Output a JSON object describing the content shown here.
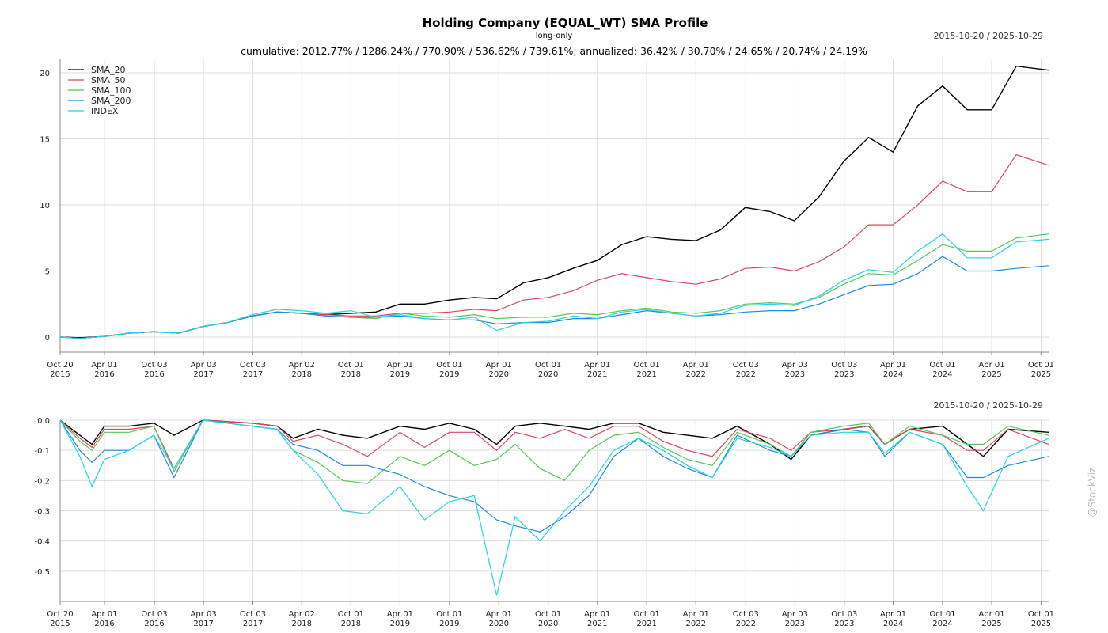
{
  "header": {
    "title": "Holding Company (EQUAL_WT) SMA Profile",
    "subtitle": "long-only",
    "date_range_top": "2015-10-20 / 2025-10-29",
    "stats": "cumulative: 2012.77% / 1286.24% / 770.90% / 536.62% / 739.61%; annualized: 36.42% / 30.70% / 24.65% / 20.74% / 24.19%",
    "date_range_bottom": "2015-10-20 / 2025-10-29",
    "watermark": "@StockViz"
  },
  "chart_data": [
    {
      "type": "line",
      "name": "cumulative-returns",
      "ylim": [
        -0.5,
        21
      ],
      "yticks": [
        0,
        5,
        10,
        15,
        20
      ],
      "grid": true,
      "legend_placement": "top-left",
      "x_ticks": [
        {
          "date": "2015-10-20",
          "l1": "Oct 20",
          "l2": "2015"
        },
        {
          "date": "2016-04-01",
          "l1": "Apr 01",
          "l2": "2016"
        },
        {
          "date": "2016-10-03",
          "l1": "Oct 03",
          "l2": "2016"
        },
        {
          "date": "2017-04-03",
          "l1": "Apr 03",
          "l2": "2017"
        },
        {
          "date": "2017-10-03",
          "l1": "Oct 03",
          "l2": "2017"
        },
        {
          "date": "2018-04-02",
          "l1": "Apr 02",
          "l2": "2018"
        },
        {
          "date": "2018-10-01",
          "l1": "Oct 01",
          "l2": "2018"
        },
        {
          "date": "2019-04-01",
          "l1": "Apr 01",
          "l2": "2019"
        },
        {
          "date": "2019-10-01",
          "l1": "Oct 01",
          "l2": "2019"
        },
        {
          "date": "2020-04-01",
          "l1": "Apr 01",
          "l2": "2020"
        },
        {
          "date": "2020-10-01",
          "l1": "Oct 01",
          "l2": "2020"
        },
        {
          "date": "2021-04-01",
          "l1": "Apr 01",
          "l2": "2021"
        },
        {
          "date": "2021-10-01",
          "l1": "Oct 01",
          "l2": "2021"
        },
        {
          "date": "2022-04-01",
          "l1": "Apr 01",
          "l2": "2022"
        },
        {
          "date": "2022-10-03",
          "l1": "Oct 03",
          "l2": "2022"
        },
        {
          "date": "2023-04-03",
          "l1": "Apr 03",
          "l2": "2023"
        },
        {
          "date": "2023-10-03",
          "l1": "Oct 03",
          "l2": "2023"
        },
        {
          "date": "2024-04-01",
          "l1": "Apr 01",
          "l2": "2024"
        },
        {
          "date": "2024-10-01",
          "l1": "Oct 01",
          "l2": "2024"
        },
        {
          "date": "2025-04-01",
          "l1": "Apr 01",
          "l2": "2025"
        },
        {
          "date": "2025-10-01",
          "l1": "Oct 01",
          "l2": "2025"
        }
      ],
      "x": [
        "2015-10-20",
        "2016-01-01",
        "2016-04-01",
        "2016-07-01",
        "2016-10-01",
        "2017-01-01",
        "2017-04-01",
        "2017-07-01",
        "2017-10-01",
        "2018-01-01",
        "2018-04-01",
        "2018-07-01",
        "2018-10-01",
        "2019-01-01",
        "2019-04-01",
        "2019-07-01",
        "2019-10-01",
        "2020-01-01",
        "2020-03-24",
        "2020-07-01",
        "2020-10-01",
        "2021-01-01",
        "2021-04-01",
        "2021-07-01",
        "2021-10-01",
        "2022-01-01",
        "2022-04-01",
        "2022-07-01",
        "2022-10-01",
        "2023-01-01",
        "2023-04-01",
        "2023-07-01",
        "2023-10-01",
        "2024-01-01",
        "2024-04-01",
        "2024-07-01",
        "2024-10-01",
        "2025-01-01",
        "2025-04-01",
        "2025-07-01",
        "2025-10-29"
      ],
      "series": [
        {
          "name": "SMA_20",
          "color": "#000000",
          "values": [
            0,
            -0.05,
            0.05,
            0.3,
            0.4,
            0.3,
            0.8,
            1.1,
            1.6,
            1.9,
            1.8,
            1.7,
            1.8,
            1.9,
            2.5,
            2.5,
            2.8,
            3.0,
            2.9,
            4.1,
            4.5,
            5.2,
            5.8,
            7.0,
            7.6,
            7.4,
            7.3,
            8.1,
            9.8,
            9.5,
            8.8,
            10.6,
            13.3,
            15.1,
            14.0,
            17.5,
            19.0,
            17.2,
            17.2,
            20.5,
            20.2
          ]
        },
        {
          "name": "SMA_50",
          "color": "#d9465e",
          "values": [
            0,
            -0.1,
            0.05,
            0.3,
            0.4,
            0.3,
            0.8,
            1.1,
            1.6,
            1.9,
            1.8,
            1.7,
            1.6,
            1.6,
            1.8,
            1.8,
            1.9,
            2.1,
            2.0,
            2.8,
            3.0,
            3.5,
            4.3,
            4.8,
            4.5,
            4.2,
            4.0,
            4.4,
            5.2,
            5.3,
            5.0,
            5.7,
            6.8,
            8.5,
            8.5,
            10.0,
            11.8,
            11.0,
            11.0,
            13.8,
            13.0
          ]
        },
        {
          "name": "SMA_100",
          "color": "#55c855",
          "values": [
            0,
            -0.1,
            0.05,
            0.3,
            0.4,
            0.3,
            0.8,
            1.1,
            1.6,
            1.9,
            1.8,
            1.6,
            1.5,
            1.4,
            1.8,
            1.6,
            1.5,
            1.7,
            1.4,
            1.5,
            1.5,
            1.8,
            1.7,
            2.0,
            2.2,
            1.9,
            1.8,
            2.0,
            2.5,
            2.6,
            2.5,
            3.0,
            4.0,
            4.8,
            4.7,
            5.8,
            7.0,
            6.5,
            6.5,
            7.5,
            7.8
          ]
        },
        {
          "name": "SMA_200",
          "color": "#1e88e5",
          "values": [
            0,
            -0.1,
            0.05,
            0.3,
            0.4,
            0.3,
            0.8,
            1.1,
            1.6,
            1.9,
            1.8,
            1.6,
            1.5,
            1.5,
            1.6,
            1.4,
            1.3,
            1.3,
            1.0,
            1.1,
            1.1,
            1.4,
            1.4,
            1.7,
            2.0,
            1.8,
            1.6,
            1.7,
            1.9,
            2.0,
            2.0,
            2.5,
            3.2,
            3.9,
            4.0,
            4.8,
            6.1,
            5.0,
            5.0,
            5.2,
            5.4
          ]
        },
        {
          "name": "INDEX",
          "color": "#22d5de",
          "values": [
            0,
            -0.1,
            0.05,
            0.3,
            0.4,
            0.3,
            0.8,
            1.1,
            1.7,
            2.1,
            2.0,
            1.8,
            2.0,
            1.5,
            1.7,
            1.4,
            1.3,
            1.5,
            0.5,
            1.1,
            1.2,
            1.6,
            1.4,
            1.9,
            2.1,
            1.8,
            1.6,
            1.8,
            2.4,
            2.5,
            2.4,
            3.1,
            4.3,
            5.1,
            4.9,
            6.5,
            7.8,
            6.0,
            6.0,
            7.2,
            7.4
          ]
        }
      ]
    },
    {
      "type": "line",
      "name": "drawdowns",
      "ylim": [
        -0.6,
        0.0
      ],
      "yticks": [
        0.0,
        -0.1,
        -0.2,
        -0.3,
        -0.4,
        -0.5
      ],
      "ytick_labels": [
        "0.0",
        "-0.1",
        "-0.2",
        "-0.3",
        "-0.4",
        "-0.5"
      ],
      "grid": true,
      "x": [
        "2015-10-20",
        "2016-01-01",
        "2016-02-15",
        "2016-04-01",
        "2016-07-01",
        "2016-10-01",
        "2016-12-15",
        "2017-04-01",
        "2017-10-01",
        "2018-01-01",
        "2018-03-01",
        "2018-06-01",
        "2018-09-01",
        "2018-12-01",
        "2019-04-01",
        "2019-07-01",
        "2019-10-01",
        "2020-01-01",
        "2020-03-24",
        "2020-06-01",
        "2020-09-01",
        "2020-12-01",
        "2021-03-01",
        "2021-06-01",
        "2021-09-01",
        "2021-12-01",
        "2022-03-01",
        "2022-06-01",
        "2022-09-01",
        "2023-01-01",
        "2023-03-20",
        "2023-06-01",
        "2023-10-01",
        "2024-01-01",
        "2024-03-01",
        "2024-06-01",
        "2024-10-01",
        "2025-01-01",
        "2025-03-01",
        "2025-06-01",
        "2025-10-29"
      ],
      "series": [
        {
          "name": "SMA_20",
          "color": "#000000",
          "values": [
            0,
            -0.05,
            -0.08,
            -0.02,
            -0.02,
            -0.01,
            -0.05,
            0,
            -0.01,
            -0.02,
            -0.06,
            -0.03,
            -0.05,
            -0.06,
            -0.02,
            -0.03,
            -0.01,
            -0.03,
            -0.08,
            -0.02,
            -0.01,
            -0.02,
            -0.03,
            -0.01,
            -0.01,
            -0.04,
            -0.05,
            -0.06,
            -0.02,
            -0.08,
            -0.13,
            -0.05,
            -0.03,
            -0.02,
            -0.08,
            -0.03,
            -0.02,
            -0.08,
            -0.12,
            -0.03,
            -0.04
          ]
        },
        {
          "name": "SMA_50",
          "color": "#d9465e",
          "values": [
            0,
            -0.06,
            -0.09,
            -0.03,
            -0.03,
            -0.02,
            -0.16,
            0,
            -0.01,
            -0.02,
            -0.07,
            -0.05,
            -0.08,
            -0.12,
            -0.04,
            -0.09,
            -0.04,
            -0.04,
            -0.1,
            -0.04,
            -0.06,
            -0.03,
            -0.06,
            -0.02,
            -0.02,
            -0.07,
            -0.1,
            -0.12,
            -0.03,
            -0.06,
            -0.1,
            -0.04,
            -0.03,
            -0.02,
            -0.08,
            -0.03,
            -0.05,
            -0.1,
            -0.1,
            -0.03,
            -0.08
          ]
        },
        {
          "name": "SMA_100",
          "color": "#55c855",
          "values": [
            0,
            -0.07,
            -0.1,
            -0.04,
            -0.04,
            -0.02,
            -0.17,
            0,
            -0.02,
            -0.03,
            -0.1,
            -0.14,
            -0.2,
            -0.21,
            -0.12,
            -0.15,
            -0.1,
            -0.15,
            -0.13,
            -0.08,
            -0.16,
            -0.2,
            -0.1,
            -0.05,
            -0.04,
            -0.09,
            -0.13,
            -0.15,
            -0.04,
            -0.08,
            -0.12,
            -0.04,
            -0.02,
            -0.01,
            -0.08,
            -0.02,
            -0.05,
            -0.08,
            -0.08,
            -0.02,
            -0.05
          ]
        },
        {
          "name": "SMA_200",
          "color": "#1e88e5",
          "values": [
            0,
            -0.1,
            -0.14,
            -0.1,
            -0.1,
            -0.05,
            -0.19,
            0,
            -0.02,
            -0.03,
            -0.08,
            -0.1,
            -0.15,
            -0.15,
            -0.18,
            -0.22,
            -0.25,
            -0.27,
            -0.33,
            -0.35,
            -0.37,
            -0.32,
            -0.25,
            -0.12,
            -0.06,
            -0.12,
            -0.16,
            -0.19,
            -0.05,
            -0.1,
            -0.12,
            -0.05,
            -0.03,
            -0.04,
            -0.12,
            -0.04,
            -0.08,
            -0.19,
            -0.19,
            -0.15,
            -0.12
          ]
        },
        {
          "name": "INDEX",
          "color": "#22d5de",
          "values": [
            0,
            -0.12,
            -0.22,
            -0.13,
            -0.1,
            -0.05,
            -0.16,
            0,
            -0.02,
            -0.03,
            -0.1,
            -0.18,
            -0.3,
            -0.31,
            -0.22,
            -0.33,
            -0.27,
            -0.25,
            -0.58,
            -0.32,
            -0.4,
            -0.3,
            -0.22,
            -0.1,
            -0.06,
            -0.1,
            -0.15,
            -0.19,
            -0.06,
            -0.09,
            -0.12,
            -0.05,
            -0.04,
            -0.04,
            -0.11,
            -0.04,
            -0.08,
            -0.22,
            -0.3,
            -0.12,
            -0.06
          ]
        }
      ]
    }
  ]
}
